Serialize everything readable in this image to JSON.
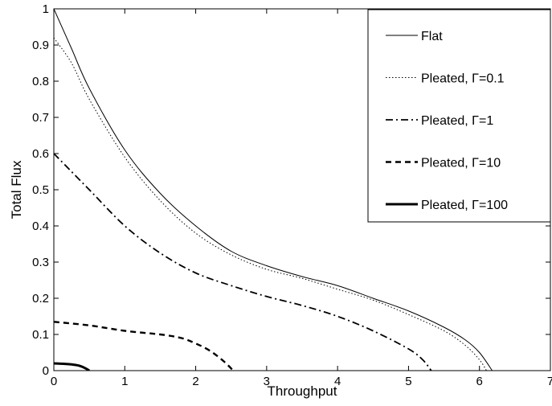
{
  "chart_data": {
    "type": "line",
    "title": "",
    "xlabel": "Throughput",
    "ylabel": "Total Flux",
    "xlim": [
      0,
      7
    ],
    "ylim": [
      0,
      1
    ],
    "xticks": [
      0,
      1,
      2,
      3,
      4,
      5,
      6,
      7
    ],
    "xtick_labels": [
      "0",
      "1",
      "2",
      "3",
      "4",
      "5",
      "6",
      "7"
    ],
    "yticks": [
      0,
      0.1,
      0.2,
      0.3,
      0.4,
      0.5,
      0.6,
      0.7,
      0.8,
      0.9,
      1
    ],
    "ytick_labels": [
      "0",
      "0.1",
      "0.2",
      "0.3",
      "0.4",
      "0.5",
      "0.6",
      "0.7",
      "0.8",
      "0.9",
      "1"
    ],
    "grid": false,
    "legend_position": "top-right",
    "series": [
      {
        "name": "Flat",
        "style": "solid-thin",
        "x": [
          0,
          0.25,
          0.5,
          1,
          1.5,
          2,
          2.5,
          3,
          3.5,
          4,
          4.5,
          5,
          5.5,
          5.8,
          6.0,
          6.18
        ],
        "y": [
          1.0,
          0.89,
          0.78,
          0.61,
          0.49,
          0.4,
          0.33,
          0.29,
          0.26,
          0.235,
          0.2,
          0.165,
          0.12,
          0.085,
          0.05,
          0.0
        ]
      },
      {
        "name": "Pleated, Γ=0.1",
        "style": "dotted",
        "x": [
          0,
          0.25,
          0.5,
          1,
          1.5,
          2,
          2.5,
          3,
          3.5,
          4,
          4.5,
          5,
          5.5,
          5.8,
          6.0,
          6.1
        ],
        "y": [
          0.92,
          0.85,
          0.75,
          0.59,
          0.47,
          0.38,
          0.32,
          0.28,
          0.255,
          0.225,
          0.195,
          0.155,
          0.11,
          0.07,
          0.03,
          0.0
        ]
      },
      {
        "name": "Pleated, Γ=1",
        "style": "dashdot",
        "x": [
          0,
          0.5,
          1,
          1.5,
          2,
          2.5,
          3,
          3.5,
          4,
          4.5,
          5,
          5.2,
          5.32
        ],
        "y": [
          0.6,
          0.5,
          0.4,
          0.325,
          0.27,
          0.235,
          0.205,
          0.18,
          0.15,
          0.11,
          0.06,
          0.03,
          0.0
        ]
      },
      {
        "name": "Pleated, Γ=10",
        "style": "dashed",
        "x": [
          0,
          0.5,
          1,
          1.5,
          1.8,
          2.0,
          2.2,
          2.4,
          2.53
        ],
        "y": [
          0.135,
          0.125,
          0.11,
          0.1,
          0.09,
          0.075,
          0.055,
          0.025,
          0.0
        ]
      },
      {
        "name": "Pleated, Γ=100",
        "style": "solid-thick",
        "x": [
          0,
          0.2,
          0.35,
          0.45,
          0.5
        ],
        "y": [
          0.02,
          0.018,
          0.014,
          0.006,
          0.0
        ]
      }
    ]
  }
}
